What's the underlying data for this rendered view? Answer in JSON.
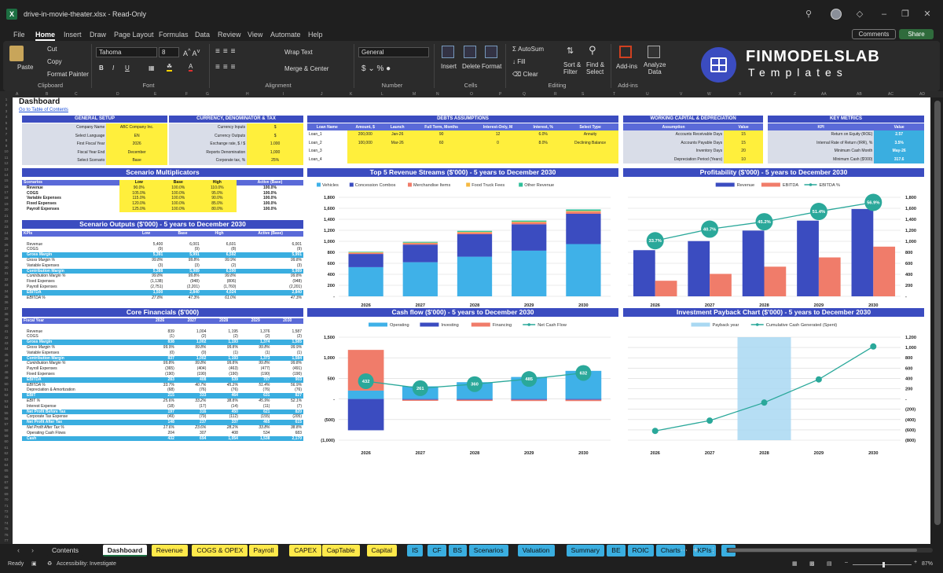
{
  "window": {
    "title": "drive-in-movie-theater.xlsx  -  Read-Only",
    "icons": [
      "search-icon",
      "avatar",
      "diamond-icon",
      "minimize-icon",
      "restore-icon",
      "close-icon"
    ]
  },
  "menu": {
    "tabs": [
      "File",
      "Home",
      "Insert",
      "Draw",
      "Page Layout",
      "Formulas",
      "Data",
      "Review",
      "View",
      "Automate",
      "Help"
    ],
    "active": "Home",
    "comments": "Comments",
    "share": "Share"
  },
  "ribbon": {
    "paste": "Paste",
    "cut": "Cut",
    "copy": "Copy",
    "format_painter": "Format Painter",
    "clipboard": "Clipboard",
    "font_name": "Tahoma",
    "font_size": "8",
    "font_group": "Font",
    "wrap_text": "Wrap Text",
    "merge_center": "Merge & Center",
    "alignment": "Alignment",
    "number_format": "General",
    "number": "Number",
    "insert": "Insert",
    "delete": "Delete",
    "format": "Format",
    "cells": "Cells",
    "autosum": "AutoSum",
    "fill": "Fill",
    "clear": "Clear",
    "sort_filter": "Sort &\nFilter",
    "find_select": "Find &\nSelect",
    "editing": "Editing",
    "addins": "Add-ins",
    "analyze": "Analyze\nData",
    "addins_group": "Add-ins",
    "logo_title": "FINMODELSLAB",
    "logo_sub": "Templates"
  },
  "columns": [
    "A",
    "B",
    "C",
    "D",
    "E",
    "F",
    "G",
    "H",
    "I",
    "J",
    "K",
    "L",
    "M",
    "N",
    "O",
    "P",
    "Q",
    "R",
    "S",
    "T",
    "U",
    "V",
    "W",
    "X",
    "Y",
    "Z",
    "AA",
    "AB",
    "AC",
    "AD"
  ],
  "dashboard": {
    "title": "Dashboard",
    "toc": "Go to Table of Contents",
    "general_setup": {
      "header": "GENERAL SETUP",
      "rows": [
        [
          "Company Name",
          "ABC Company Inc."
        ],
        [
          "Select Language",
          "EN"
        ],
        [
          "First Fiscal Year",
          "2026"
        ],
        [
          "Fiscal Year End",
          "December"
        ],
        [
          "Select Scenario",
          "Base"
        ]
      ]
    },
    "currency": {
      "header": "CURRENCY, DENOMINATOR & TAX",
      "rows": [
        [
          "Currency Inputs",
          "$"
        ],
        [
          "Currency Outputs",
          "$"
        ],
        [
          "Exchange rate, $ / $",
          "1.000"
        ],
        [
          "Reports Denomination",
          "1,000"
        ],
        [
          "Corporate tax, %",
          "25%"
        ]
      ]
    },
    "debts": {
      "header": "DEBTS ASSUMPTIONS",
      "cols": [
        "Loan Name",
        "Amount, $",
        "Launch",
        "Full Term, Months",
        "Interest-Only, M",
        "Interest, %",
        "Select Type"
      ],
      "rows": [
        [
          "Loan_1",
          "200,000",
          "Jan-26",
          "90",
          "12",
          "6.0%",
          "Annuity"
        ],
        [
          "Loan_2",
          "100,000",
          "Mar-26",
          "60",
          "0",
          "8.0%",
          "Declining Balance"
        ],
        [
          "Loan_3",
          "",
          "",
          "",
          "",
          "",
          ""
        ],
        [
          "Loan_4",
          "",
          "",
          "",
          "",
          "",
          ""
        ]
      ]
    },
    "working_capital": {
      "header": "WORKING CAPITAL & DEPRECIATION",
      "cols": [
        "Assumption",
        "Value"
      ],
      "rows": [
        [
          "Accounts Receivable Days",
          "15"
        ],
        [
          "Accounts Payable Days",
          "15"
        ],
        [
          "Inventory Days",
          "20"
        ],
        [
          "Depreciation Period (Years)",
          "10"
        ]
      ]
    },
    "key_metrics": {
      "header": "KEY METRICS",
      "cols": [
        "KPI",
        "Value"
      ],
      "rows": [
        [
          "Return on Equity (ROE)",
          "2.57"
        ],
        [
          "Internal Rate of Return (IRR), %",
          "3.5%"
        ],
        [
          "Minimum Cash Month",
          "May-26"
        ],
        [
          "Minimum Cash ($'000)",
          "317.6"
        ]
      ]
    },
    "scenario_mult": {
      "header": "Scenario Multiplicators",
      "cols": [
        "Scenarios",
        "Low",
        "Base",
        "High",
        "Active (Base)"
      ],
      "rows": [
        [
          "Revenue",
          "90.0%",
          "100.0%",
          "110.0%",
          "100.0%"
        ],
        [
          "COGS",
          "105.0%",
          "100.0%",
          "95.0%",
          "100.0%"
        ],
        [
          "Variable Expenses",
          "115.0%",
          "100.0%",
          "90.0%",
          "100.0%"
        ],
        [
          "Fixed Expenses",
          "120.0%",
          "100.0%",
          "85.0%",
          "100.0%"
        ],
        [
          "Payroll Expenses",
          "125.0%",
          "100.0%",
          "80.0%",
          "100.0%"
        ]
      ]
    },
    "scenario_out": {
      "header": "Scenario Outputs ($'000) - 5 years to December 2030",
      "cols": [
        "KPIs",
        "Low",
        "Base",
        "High",
        "Active (Base)"
      ],
      "rows": [
        {
          "c": [
            "",
            "",
            "",
            "",
            ""
          ],
          "s": ""
        },
        {
          "c": [
            "Revenue",
            "5,400",
            "6,001",
            "6,601",
            "6,001"
          ],
          "s": ""
        },
        {
          "c": [
            "COGS",
            "(9)",
            "(9)",
            "(8)",
            "(9)"
          ],
          "s": ""
        },
        {
          "c": [
            "Gross Margin",
            "5,391",
            "5,991",
            "6,592",
            "5,991"
          ],
          "s": "hl"
        },
        {
          "c": [
            "Gross Margin %",
            "99.8%",
            "99.8%",
            "99.9%",
            "99.8%"
          ],
          "s": "it"
        },
        {
          "c": [
            "Variable Expenses",
            "(3)",
            "(3)",
            "(2)",
            "(3)"
          ],
          "s": ""
        },
        {
          "c": [
            "Contribution Margin",
            "5,388",
            "5,989",
            "6,590",
            "5,989"
          ],
          "s": "hl"
        },
        {
          "c": [
            "Contribution Margin %",
            "99.8%",
            "99.8%",
            "99.8%",
            "99.8%"
          ],
          "s": "it"
        },
        {
          "c": [
            "Fixed Expenses",
            "(1,138)",
            "(948)",
            "(806)",
            "(948)"
          ],
          "s": ""
        },
        {
          "c": [
            "Payroll Expenses",
            "(2,751)",
            "(2,201)",
            "(1,760)",
            "(2,201)"
          ],
          "s": ""
        },
        {
          "c": [
            "EBITDA",
            "1,500",
            "2,840",
            "4,024",
            "2,840"
          ],
          "s": "hl"
        },
        {
          "c": [
            "EBITDA %",
            "27.8%",
            "47.3%",
            "61.0%",
            "47.3%"
          ],
          "s": "it"
        }
      ]
    },
    "core": {
      "header": "Core Financials ($'000)",
      "cols": [
        "Fiscal Year",
        "2026",
        "2027",
        "2028",
        "2029",
        "2030"
      ],
      "rows": [
        {
          "c": [
            "",
            "",
            "",
            "",
            "",
            ""
          ],
          "s": ""
        },
        {
          "c": [
            "Revenue",
            "839",
            "1,004",
            "1,195",
            "1,376",
            "1,587"
          ],
          "s": ""
        },
        {
          "c": [
            "COGS",
            "(1)",
            "(2)",
            "(2)",
            "(2)",
            "(2)"
          ],
          "s": ""
        },
        {
          "c": [
            "Gross Margin",
            "838",
            "1,002",
            "1,193",
            "1,374",
            "1,585"
          ],
          "s": "hl"
        },
        {
          "c": [
            "Gross Margin %",
            "99.9%",
            "99.8%",
            "99.8%",
            "99.8%",
            "99.9%"
          ],
          "s": "it"
        },
        {
          "c": [
            "Variable Expenses",
            "(0)",
            "(0)",
            "(1)",
            "(1)",
            "(1)"
          ],
          "s": ""
        },
        {
          "c": [
            "Contribution Margin",
            "837",
            "1,002",
            "1,193",
            "1,373",
            "1,584"
          ],
          "s": "hl"
        },
        {
          "c": [
            "Contribution Margin %",
            "99.8%",
            "99.8%",
            "99.8%",
            "99.8%",
            "99.8%"
          ],
          "s": "it"
        },
        {
          "c": [
            "Payroll Expenses",
            "(365)",
            "(404)",
            "(463)",
            "(477)",
            "(491)"
          ],
          "s": ""
        },
        {
          "c": [
            "Fixed Expenses",
            "(190)",
            "(190)",
            "(190)",
            "(190)",
            "(190)"
          ],
          "s": ""
        },
        {
          "c": [
            "EBITDA",
            "283",
            "408",
            "539",
            "707",
            "903"
          ],
          "s": "hl"
        },
        {
          "c": [
            "EBITDA %",
            "33.7%",
            "40.7%",
            "45.2%",
            "51.4%",
            "56.9%"
          ],
          "s": "it"
        },
        {
          "c": [
            "Depreciation & Amortization",
            "(68)",
            "(76)",
            "(76)",
            "(76)",
            "(76)"
          ],
          "s": ""
        },
        {
          "c": [
            "EBIT",
            "215",
            "333",
            "464",
            "631",
            "827"
          ],
          "s": "hl"
        },
        {
          "c": [
            "EBIT %",
            "25.6%",
            "33.2%",
            "38.8%",
            "45.9%",
            "52.1%"
          ],
          "s": "it"
        },
        {
          "c": [
            "Interest Expense",
            "(18)",
            "(17)",
            "(14)",
            "(11)",
            "(7)"
          ],
          "s": ""
        },
        {
          "c": [
            "Net Profit Before Tax",
            "197",
            "316",
            "450",
            "621",
            "820"
          ],
          "s": "hl"
        },
        {
          "c": [
            "Corporate Tax Expense",
            "(49)",
            "(79)",
            "(112)",
            "(155)",
            "(205)"
          ],
          "s": ""
        },
        {
          "c": [
            "Net Profit After Tax",
            "148",
            "237",
            "337",
            "465",
            "615"
          ],
          "s": "hl"
        },
        {
          "c": [
            "Net Profit After Tax %",
            "17.6%",
            "23.6%",
            "28.2%",
            "33.8%",
            "38.8%"
          ],
          "s": "it"
        },
        {
          "c": [
            "Operating Cash Flows",
            "204",
            "307",
            "408",
            "534",
            "683"
          ],
          "s": ""
        },
        {
          "c": [
            "Cash",
            "432",
            "694",
            "1,054",
            "1,538",
            "2,170"
          ],
          "s": "hl"
        }
      ]
    }
  },
  "chart_data": [
    {
      "type": "bar",
      "title": "Top 5 Revenue Streams ($'000) - 5 years to December 2030",
      "categories": [
        "2026",
        "2027",
        "2028",
        "2029",
        "2030"
      ],
      "stacked": true,
      "ylim": [
        0,
        1800
      ],
      "yticks": [
        "-",
        "200",
        "400",
        "600",
        "800",
        "1,000",
        "1,200",
        "1,400",
        "1,600",
        "1,800"
      ],
      "series": [
        {
          "name": "Vehicles",
          "color": "#3fb1e8",
          "values": [
            530,
            620,
            720,
            830,
            950
          ]
        },
        {
          "name": "Concession Combos",
          "color": "#3b4cc0",
          "values": [
            240,
            320,
            410,
            480,
            550
          ]
        },
        {
          "name": "Merchandise Items",
          "color": "#f07c6a",
          "values": [
            20,
            25,
            30,
            35,
            40
          ]
        },
        {
          "name": "Food Truck Fees",
          "color": "#f5b942",
          "values": [
            10,
            10,
            12,
            12,
            14
          ]
        },
        {
          "name": "Other Revenue",
          "color": "#2fbf9a",
          "values": [
            10,
            15,
            18,
            20,
            25
          ]
        }
      ],
      "legend": "top"
    },
    {
      "type": "bar",
      "title": "Profitability ($'000) - 5 years to December 2030",
      "categories": [
        "2026",
        "2027",
        "2028",
        "2029",
        "2030"
      ],
      "ylim": [
        0,
        1800
      ],
      "yticks": [
        "-",
        "200",
        "400",
        "600",
        "800",
        "1,000",
        "1,200",
        "1,400",
        "1,600",
        "1,800"
      ],
      "y2ticks": [
        "0.0%",
        "10.0%",
        "20.0%",
        "30.0%",
        "40.0%",
        "50.0%",
        "60.0%"
      ],
      "y2lim": [
        0,
        60
      ],
      "series": [
        {
          "name": "Revenue",
          "color": "#3b4cc0",
          "values": [
            839,
            1004,
            1195,
            1376,
            1587
          ]
        },
        {
          "name": "EBITDA",
          "color": "#f07c6a",
          "values": [
            283,
            408,
            539,
            707,
            903
          ]
        }
      ],
      "line": {
        "name": "EBITDA %",
        "color": "#2aa89a",
        "values": [
          33.7,
          40.7,
          45.2,
          51.4,
          56.9
        ],
        "labels": [
          "33.7%",
          "40.7%",
          "45.2%",
          "51.4%",
          "56.9%"
        ]
      },
      "legend": "top"
    },
    {
      "type": "bar",
      "title": "Cash flow ($'000) - 5 years to December 2030",
      "categories": [
        "2026",
        "2027",
        "2028",
        "2029",
        "2030"
      ],
      "ylim": [
        -1000,
        1500
      ],
      "yticks": [
        "(1,000)",
        "(500)",
        "-",
        "500",
        "1,000",
        "1,500"
      ],
      "series": [
        {
          "name": "Operating",
          "color": "#3fb1e8",
          "values": [
            204,
            307,
            408,
            534,
            683
          ]
        },
        {
          "name": "Investing",
          "color": "#3b4cc0",
          "values": [
            -760,
            -20,
            -20,
            -20,
            -20
          ]
        },
        {
          "name": "Financing",
          "color": "#f07c6a",
          "values": [
            988,
            -25,
            -28,
            -30,
            -31
          ]
        }
      ],
      "line": {
        "name": "Net Cash Flow",
        "color": "#2aa89a",
        "values": [
          432,
          261,
          360,
          485,
          632
        ],
        "labels": [
          "432",
          "261",
          "360",
          "485",
          "632"
        ]
      },
      "legend": "top"
    },
    {
      "type": "bar",
      "title": "Investment Payback Chart ($'000) - 5 years to December 2030",
      "categories": [
        "2026",
        "2027",
        "2028",
        "2029",
        "2030"
      ],
      "ylim": [
        -800,
        1200
      ],
      "yticks": [
        "(800)",
        "(600)",
        "(400)",
        "(200)",
        "-",
        "200",
        "400",
        "600",
        "800",
        "1,000",
        "1,200"
      ],
      "series": [
        {
          "name": "Payback year",
          "color": "#a9d8f2",
          "values": [
            0,
            0,
            1,
            0,
            0
          ]
        }
      ],
      "line": {
        "name": "Cumulative Cash Generated (Spent)",
        "color": "#2aa89a",
        "values": [
          -620,
          -420,
          -70,
          380,
          1020
        ]
      },
      "legend": "top"
    }
  ],
  "sheet_tabs": [
    {
      "label": "Contents",
      "color": "#1f1f1f",
      "text": "#ddd"
    },
    {
      "label": "Dashboard",
      "color": "#ffffff",
      "text": "#111"
    },
    {
      "label": "Revenue",
      "color": "#ffe94a",
      "text": "#111"
    },
    {
      "label": "COGS & OPEX",
      "color": "#ffe94a",
      "text": "#111"
    },
    {
      "label": "Payroll",
      "color": "#ffe94a",
      "text": "#111"
    },
    {
      "label": "CAPEX",
      "color": "#ffe94a",
      "text": "#111"
    },
    {
      "label": "CapTable",
      "color": "#ffe94a",
      "text": "#111"
    },
    {
      "label": "Capital",
      "color": "#ffe94a",
      "text": "#111"
    },
    {
      "label": "IS",
      "color": "#3aaee0",
      "text": "#111"
    },
    {
      "label": "CF",
      "color": "#3aaee0",
      "text": "#111"
    },
    {
      "label": "BS",
      "color": "#3aaee0",
      "text": "#111"
    },
    {
      "label": "Scenarios",
      "color": "#3aaee0",
      "text": "#111"
    },
    {
      "label": "Valuation",
      "color": "#3aaee0",
      "text": "#111"
    },
    {
      "label": "Summary",
      "color": "#3aaee0",
      "text": "#111"
    },
    {
      "label": "BE",
      "color": "#3aaee0",
      "text": "#111"
    },
    {
      "label": "ROIC",
      "color": "#3aaee0",
      "text": "#111"
    },
    {
      "label": "Charts",
      "color": "#3aaee0",
      "text": "#111"
    },
    {
      "label": "KPIs",
      "color": "#3aaee0",
      "text": "#111"
    },
    {
      "label": "S",
      "color": "#3aaee0",
      "text": "#111"
    }
  ],
  "status": {
    "ready": "Ready",
    "accessibility": "Accessibility: Investigate",
    "zoom": "87%"
  }
}
